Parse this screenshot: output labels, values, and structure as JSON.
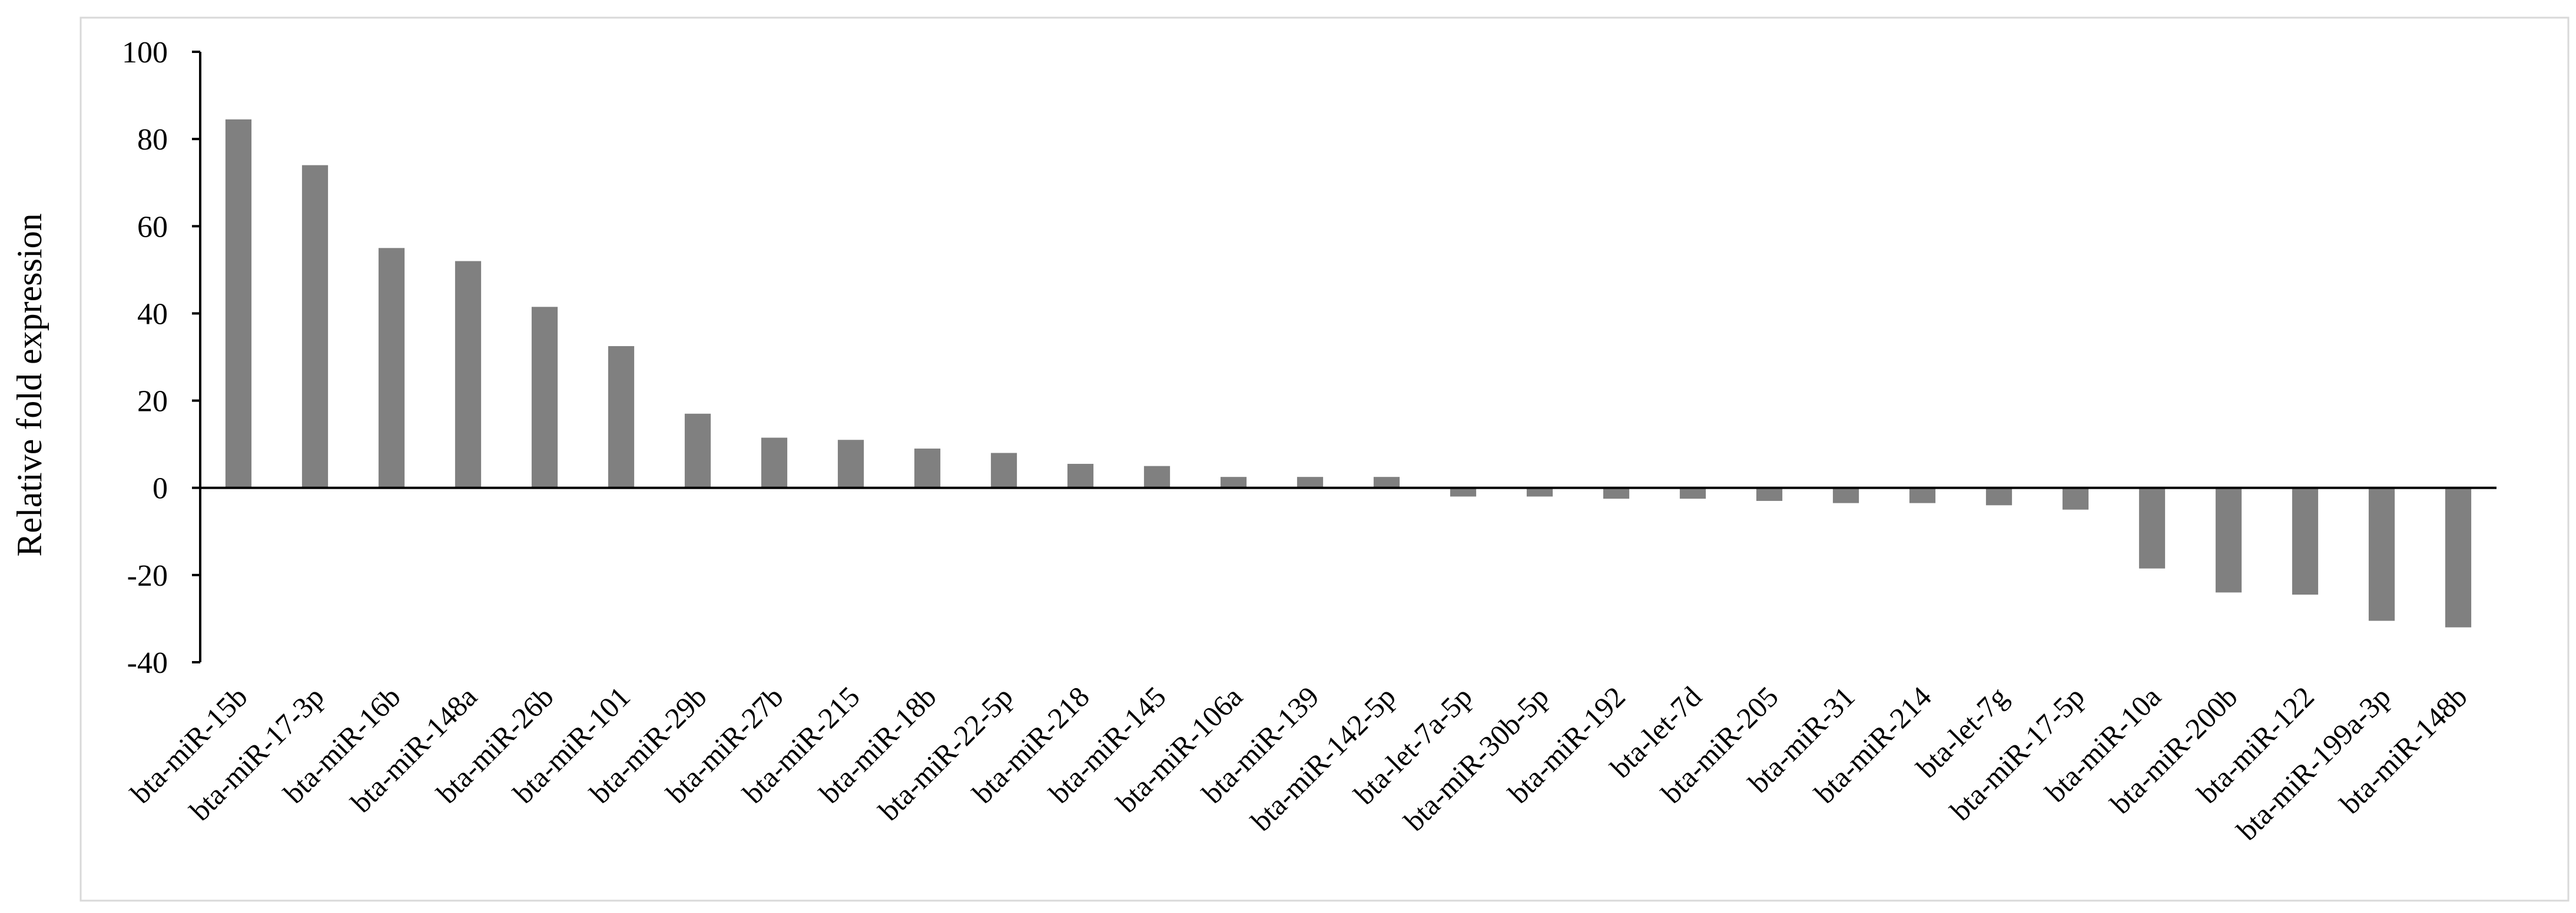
{
  "chart_data": {
    "type": "bar",
    "title": "",
    "xlabel": "",
    "ylabel": "Relative fold expression",
    "ylim": [
      -40,
      100
    ],
    "yticks": [
      100,
      80,
      60,
      40,
      20,
      0,
      -20,
      -40
    ],
    "grid": false,
    "legend": "none",
    "bar_color": "#808080",
    "categories": [
      "bta-miR-15b",
      "bta-miR-17-3p",
      "bta-miR-16b",
      "bta-miR-148a",
      "bta-miR-26b",
      "bta-miR-101",
      "bta-miR-29b",
      "bta-miR-27b",
      "bta-miR-215",
      "bta-miR-18b",
      "bta-miR-22-5p",
      "bta-miR-218",
      "bta-miR-145",
      "bta-miR-106a",
      "bta-miR-139",
      "bta-miR-142-5p",
      "bta-let-7a-5p",
      "bta-miR-30b-5p",
      "bta-miR-192",
      "bta-let-7d",
      "bta-miR-205",
      "bta-miR-31",
      "bta-miR-214",
      "bta-let-7g",
      "bta-miR-17-5p",
      "bta-miR-10a",
      "bta-miR-200b",
      "bta-miR-122",
      "bta-miR-199a-3p",
      "bta-miR-148b"
    ],
    "values": [
      84.5,
      74,
      55,
      52,
      41.5,
      32.5,
      17,
      11.5,
      11,
      9,
      8,
      5.5,
      5,
      2.5,
      2.5,
      2.5,
      -2,
      -2,
      -2.5,
      -2.5,
      -3,
      -3.5,
      -3.5,
      -4,
      -5,
      -18.5,
      -24,
      -24.5,
      -30.5,
      -32
    ]
  }
}
